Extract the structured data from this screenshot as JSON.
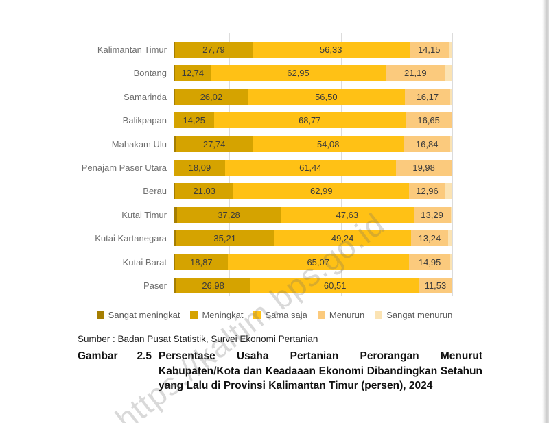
{
  "watermark": "https://kaltim.bps.go.id",
  "source": "Sumber : Badan Pusat Statistik, Survei Ekonomi Pertanian",
  "caption": {
    "label_word": "Gambar",
    "label_number": "2.5",
    "text": "Persentase Usaha Pertanian Perorangan Menurut Kabupaten/Kota dan Keadaaan Ekonomi Dibandingkan Setahun yang Lalu di Provinsi Kalimantan Timur (persen), 2024"
  },
  "chart_data": {
    "type": "bar",
    "orientation": "horizontal",
    "stacked": true,
    "xlim": [
      0,
      100
    ],
    "gridline_step": 20,
    "grid": true,
    "legend_position": "bottom",
    "grid_color": "#dcdcdc",
    "categories": [
      "Kalimantan Timur",
      "Bontang",
      "Samarinda",
      "Balikpapan",
      "Mahakam Ulu",
      "Penajam Paser Utara",
      "Berau",
      "Kutai Timur",
      "Kutai Kartanegara",
      "Kutai Barat",
      "Paser"
    ],
    "series": [
      {
        "name": "Sangat meningkat",
        "color": "#a57e01",
        "show_labels": false,
        "values": [
          0.5,
          0.5,
          0.5,
          0.2,
          0.7,
          0.3,
          0.5,
          1.2,
          0.8,
          0.5,
          0.7
        ]
      },
      {
        "name": "Meningkat",
        "color": "#d5a300",
        "show_labels": true,
        "values": [
          27.79,
          12.74,
          26.02,
          14.25,
          27.74,
          18.09,
          21.03,
          37.28,
          35.21,
          18.87,
          26.98
        ],
        "labels": [
          "27,79",
          "12,74",
          "26,02",
          "14,25",
          "27,74",
          "18,09",
          "21.03",
          "37,28",
          "35,21",
          "18,87",
          "26,98"
        ]
      },
      {
        "name": "Sama saja",
        "color": "#ffc115",
        "show_labels": true,
        "values": [
          56.33,
          62.95,
          56.5,
          68.77,
          54.08,
          61.44,
          62.99,
          47.63,
          49.24,
          65.07,
          60.51
        ],
        "labels": [
          "56,33",
          "62,95",
          "56,50",
          "68,77",
          "54,08",
          "61,44",
          "62,99",
          "47,63",
          "49,24",
          "65,07",
          "60,51"
        ]
      },
      {
        "name": "Menurun",
        "color": "#fbca7d",
        "show_labels": true,
        "values": [
          14.15,
          21.19,
          16.17,
          16.65,
          16.84,
          19.98,
          12.96,
          13.29,
          13.24,
          14.95,
          11.53
        ],
        "labels": [
          "14,15",
          "21,19",
          "16,17",
          "16,65",
          "16,84",
          "19,98",
          "12,96",
          "13,29",
          "13,24",
          "14,95",
          "11,53"
        ]
      },
      {
        "name": "Sangat menurun",
        "color": "#fbe3b3",
        "show_labels": false,
        "values": [
          1.23,
          2.62,
          0.81,
          0.13,
          0.64,
          0.19,
          2.52,
          0.6,
          1.51,
          0.61,
          0.28
        ]
      }
    ]
  }
}
